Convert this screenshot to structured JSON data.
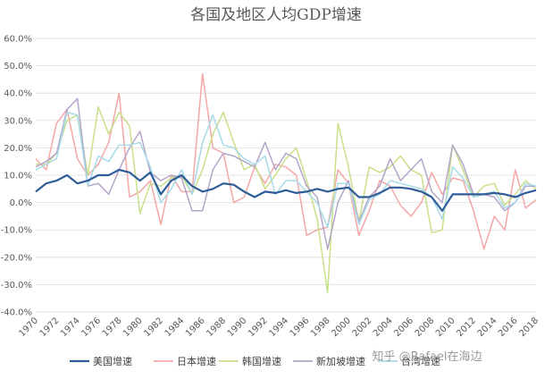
{
  "chart_data": {
    "type": "line",
    "title": "各国及地区人均GDP增速",
    "xlabel": "",
    "ylabel": "",
    "ylim": [
      -0.4,
      0.6
    ],
    "y_ticks": [
      "60.0%",
      "50.0%",
      "40.0%",
      "30.0%",
      "20.0%",
      "10.0%",
      "0.0%",
      "-10.0%",
      "-20.0%",
      "-30.0%",
      "-40.0%"
    ],
    "x_ticks": [
      "1970",
      "1972",
      "1974",
      "1976",
      "1978",
      "1980",
      "1982",
      "1984",
      "1986",
      "1988",
      "1990",
      "1992",
      "1994",
      "1996",
      "1998",
      "2000",
      "2002",
      "2004",
      "2006",
      "2008",
      "2010",
      "2012",
      "2014",
      "2016",
      "2018"
    ],
    "grid": true,
    "legend_position": "bottom",
    "x": [
      1970,
      1971,
      1972,
      1973,
      1974,
      1975,
      1976,
      1977,
      1978,
      1979,
      1980,
      1981,
      1982,
      1983,
      1984,
      1985,
      1986,
      1987,
      1988,
      1989,
      1990,
      1991,
      1992,
      1993,
      1994,
      1995,
      1996,
      1997,
      1998,
      1999,
      2000,
      2001,
      2002,
      2003,
      2004,
      2005,
      2006,
      2007,
      2008,
      2009,
      2010,
      2011,
      2012,
      2013,
      2014,
      2015,
      2016,
      2017,
      2018
    ],
    "series": [
      {
        "name": "美国增速",
        "color": "#2e5d9a",
        "values": [
          0.04,
          0.07,
          0.08,
          0.1,
          0.07,
          0.08,
          0.1,
          0.1,
          0.12,
          0.11,
          0.08,
          0.11,
          0.03,
          0.08,
          0.1,
          0.06,
          0.04,
          0.05,
          0.07,
          0.065,
          0.04,
          0.02,
          0.04,
          0.035,
          0.045,
          0.035,
          0.04,
          0.05,
          0.04,
          0.05,
          0.055,
          0.02,
          0.02,
          0.035,
          0.055,
          0.055,
          0.05,
          0.04,
          0.02,
          -0.03,
          0.03,
          0.03,
          0.03,
          0.03,
          0.035,
          0.03,
          0.02,
          0.035,
          0.045
        ]
      },
      {
        "name": "日本增速",
        "color": "#f4a7a7",
        "values": [
          0.16,
          0.12,
          0.29,
          0.34,
          0.16,
          0.1,
          0.14,
          0.22,
          0.4,
          0.02,
          0.04,
          0.08,
          -0.08,
          0.1,
          0.04,
          0.04,
          0.47,
          0.2,
          0.18,
          0.0,
          0.02,
          0.13,
          0.07,
          0.14,
          0.13,
          0.1,
          -0.12,
          -0.1,
          -0.09,
          0.12,
          0.07,
          -0.12,
          -0.03,
          0.08,
          0.06,
          -0.01,
          -0.05,
          0.0,
          0.11,
          0.03,
          0.09,
          0.08,
          -0.03,
          -0.17,
          -0.05,
          -0.1,
          0.12,
          -0.02,
          0.01
        ]
      },
      {
        "name": "韩国增速",
        "color": "#c8e08a",
        "values": [
          0.14,
          0.14,
          0.18,
          0.3,
          0.32,
          0.1,
          0.35,
          0.25,
          0.33,
          0.28,
          -0.04,
          0.07,
          0.06,
          0.09,
          0.1,
          0.03,
          0.12,
          0.25,
          0.33,
          0.22,
          0.12,
          0.14,
          0.05,
          0.1,
          0.16,
          0.2,
          0.08,
          -0.06,
          -0.33,
          0.29,
          0.13,
          -0.07,
          0.13,
          0.11,
          0.13,
          0.17,
          0.12,
          0.1,
          -0.11,
          -0.1,
          0.21,
          0.12,
          0.02,
          0.06,
          0.07,
          -0.01,
          0.03,
          0.08,
          0.05
        ]
      },
      {
        "name": "新加坡增速",
        "color": "#b5a5c9",
        "values": [
          0.13,
          0.15,
          0.18,
          0.34,
          0.38,
          0.06,
          0.07,
          0.03,
          0.12,
          0.2,
          0.26,
          0.11,
          0.08,
          0.1,
          0.09,
          -0.03,
          -0.03,
          0.12,
          0.18,
          0.17,
          0.15,
          0.13,
          0.22,
          0.12,
          0.18,
          0.16,
          0.06,
          0.02,
          -0.17,
          0.0,
          0.08,
          -0.07,
          0.02,
          0.06,
          0.16,
          0.08,
          0.12,
          0.16,
          0.04,
          0.0,
          0.21,
          0.14,
          0.03,
          0.03,
          0.02,
          -0.03,
          0.0,
          0.06,
          0.06
        ]
      },
      {
        "name": "台湾增速",
        "color": "#a8dbe8",
        "values": [
          0.12,
          0.14,
          0.16,
          0.33,
          0.32,
          0.06,
          0.17,
          0.15,
          0.21,
          0.21,
          0.22,
          0.13,
          0.0,
          0.05,
          0.12,
          0.03,
          0.22,
          0.32,
          0.21,
          0.2,
          0.16,
          0.14,
          0.17,
          0.03,
          0.08,
          0.08,
          0.04,
          0.0,
          -0.09,
          0.07,
          0.07,
          -0.08,
          0.01,
          0.03,
          0.08,
          0.07,
          0.06,
          0.05,
          0.02,
          -0.06,
          0.13,
          0.09,
          0.02,
          0.03,
          0.04,
          -0.02,
          0.0,
          0.07,
          0.06
        ]
      }
    ]
  },
  "watermark": "知乎 @Rafael在海边"
}
